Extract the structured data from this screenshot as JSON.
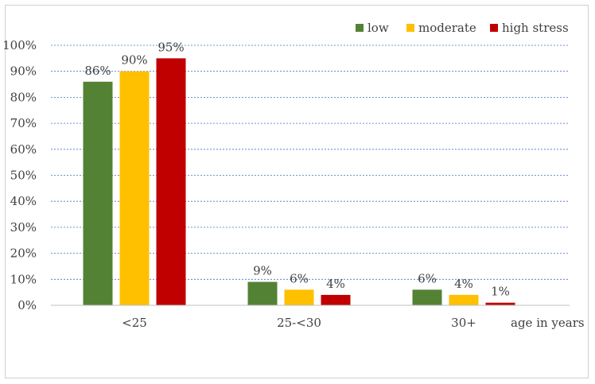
{
  "chart_data": {
    "type": "bar",
    "categories": [
      "<25",
      "25-<30",
      "30+"
    ],
    "series": [
      {
        "name": "low",
        "color": "#548235",
        "values": [
          86,
          9,
          6
        ],
        "labels": [
          "86%",
          "9%",
          "6%"
        ]
      },
      {
        "name": "moderate",
        "color": "#FFC000",
        "values": [
          90,
          6,
          4
        ],
        "labels": [
          "90%",
          "6%",
          "4%"
        ]
      },
      {
        "name": "high stress",
        "color": "#C00000",
        "values": [
          95,
          4,
          1
        ],
        "labels": [
          "95%",
          "4%",
          "1%"
        ]
      }
    ],
    "xlabel": "age in years",
    "ylabel": "",
    "ylim": [
      0,
      100
    ],
    "yticks": [
      "0%",
      "10%",
      "20%",
      "30%",
      "40%",
      "50%",
      "60%",
      "70%",
      "80%",
      "90%",
      "100%"
    ],
    "grid": true,
    "legend": "top-right"
  }
}
